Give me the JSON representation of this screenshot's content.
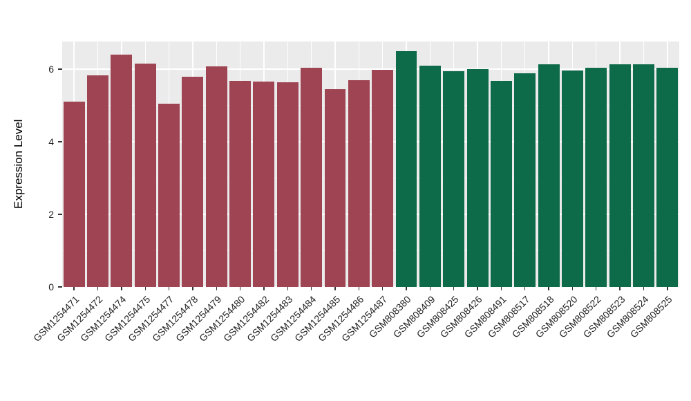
{
  "chart_data": {
    "type": "bar",
    "title": "",
    "xlabel": "",
    "ylabel": "Expression Level",
    "ylim": [
      0,
      6.76
    ],
    "yticks": [
      {
        "label": "0",
        "value": 0
      },
      {
        "label": "2",
        "value": 2
      },
      {
        "label": "4",
        "value": 4
      },
      {
        "label": "6",
        "value": 6
      }
    ],
    "minor_gridlines": [
      1,
      3,
      5
    ],
    "categories": [
      "GSM1254471",
      "GSM1254472",
      "GSM1254474",
      "GSM1254475",
      "GSM1254477",
      "GSM1254478",
      "GSM1254479",
      "GSM1254480",
      "GSM1254482",
      "GSM1254483",
      "GSM1254484",
      "GSM1254485",
      "GSM1254486",
      "GSM1254487",
      "GSM808380",
      "GSM808409",
      "GSM808425",
      "GSM808426",
      "GSM808491",
      "GSM808517",
      "GSM808518",
      "GSM808520",
      "GSM808522",
      "GSM808523",
      "GSM808524",
      "GSM808525"
    ],
    "values": [
      5.1,
      5.82,
      6.4,
      6.15,
      5.05,
      5.78,
      6.08,
      5.68,
      5.66,
      5.63,
      6.03,
      5.45,
      5.7,
      5.98,
      6.5,
      6.1,
      5.95,
      6.0,
      5.68,
      5.88,
      6.13,
      5.96,
      6.03,
      6.13,
      6.13,
      6.03
    ],
    "group_split_index": 14,
    "colors": {
      "left_group": "#9E4452",
      "right_group": "#0E6B4A",
      "panel": "#EBEBEB",
      "grid": "#FFFFFF",
      "tick": "#333333",
      "text": "#1F1F1F"
    },
    "legend": "none",
    "grid": "on"
  }
}
